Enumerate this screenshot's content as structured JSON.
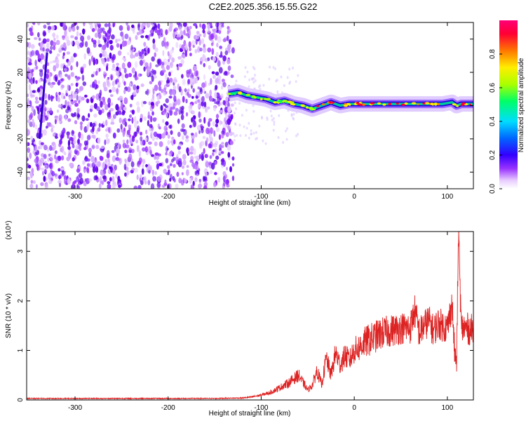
{
  "title": "C2E2.2025.356.15.55.G22",
  "chart_data": [
    {
      "type": "heatmap",
      "xlabel": "Height of straight line (km)",
      "ylabel": "Frequency (Hz)",
      "xlim": [
        -352,
        128
      ],
      "ylim": [
        -50,
        50
      ],
      "xticks": [
        -300,
        -200,
        -100,
        0,
        100
      ],
      "xtick_labels": [
        "-300",
        "-200",
        "-100",
        "0",
        "100"
      ],
      "yticks": [
        -40,
        -20,
        0,
        20,
        40
      ],
      "ytick_labels": [
        "-40",
        "-20",
        "0",
        "20",
        "40"
      ],
      "noise_region_km": [
        -352,
        -130
      ],
      "signal_track": {
        "x": [
          -135,
          -125,
          -115,
          -105,
          -95,
          -85,
          -75,
          -65,
          -55,
          -45,
          -35,
          -25,
          -15,
          -5,
          5,
          20,
          40,
          60,
          80,
          95,
          105,
          110,
          115,
          128
        ],
        "y": [
          7,
          8,
          6,
          5,
          4,
          2,
          3,
          1,
          0,
          -2,
          0,
          2,
          0,
          1,
          1,
          1,
          1,
          1,
          1,
          1,
          2,
          0,
          1,
          1
        ]
      },
      "colorbar": {
        "label": "Normalized spectral amplitude",
        "range": [
          0,
          1
        ],
        "ticks": [
          0.0,
          0.2,
          0.4,
          0.6,
          0.8
        ],
        "tick_labels": [
          "0.0",
          "0.2",
          "0.4",
          "0.6",
          "0.8"
        ],
        "colors": [
          "#ffffff",
          "#cc88ff",
          "#6600ee",
          "#0000ff",
          "#00ccff",
          "#00ff66",
          "#aaff00",
          "#ffcc00",
          "#ff6600",
          "#ff0033"
        ]
      }
    },
    {
      "type": "line",
      "xlabel": "Height of straight line (km)",
      "ylabel": "SNR (10 * v/v)",
      "y_multiplier": "(x10⁴)",
      "xlim": [
        -352,
        128
      ],
      "ylim": [
        0,
        3.4
      ],
      "xticks": [
        -300,
        -200,
        -100,
        0,
        100
      ],
      "xtick_labels": [
        "-300",
        "-200",
        "-100",
        "0",
        "100"
      ],
      "yticks": [
        0,
        1,
        2,
        3
      ],
      "ytick_labels": [
        "0",
        "1",
        "2",
        "3"
      ],
      "line_color": "#dd2222",
      "series": [
        {
          "name": "SNR",
          "x": [
            -352,
            -300,
            -200,
            -150,
            -120,
            -110,
            -100,
            -90,
            -80,
            -70,
            -60,
            -55,
            -50,
            -45,
            -40,
            -35,
            -30,
            -25,
            -20,
            -15,
            -10,
            -5,
            0,
            5,
            10,
            20,
            30,
            40,
            50,
            60,
            65,
            70,
            75,
            80,
            85,
            90,
            95,
            100,
            105,
            108,
            110,
            112,
            115,
            120,
            128
          ],
          "y": [
            0.03,
            0.03,
            0.03,
            0.03,
            0.04,
            0.06,
            0.1,
            0.15,
            0.25,
            0.35,
            0.5,
            0.35,
            0.2,
            0.3,
            0.6,
            0.3,
            0.85,
            0.5,
            0.95,
            0.7,
            0.9,
            0.8,
            1.0,
            1.05,
            1.15,
            1.25,
            1.35,
            1.4,
            1.45,
            1.45,
            1.8,
            1.35,
            1.5,
            1.6,
            1.4,
            1.55,
            1.5,
            1.45,
            1.95,
            0.9,
            0.75,
            3.4,
            1.45,
            1.45,
            1.4
          ]
        }
      ]
    }
  ]
}
